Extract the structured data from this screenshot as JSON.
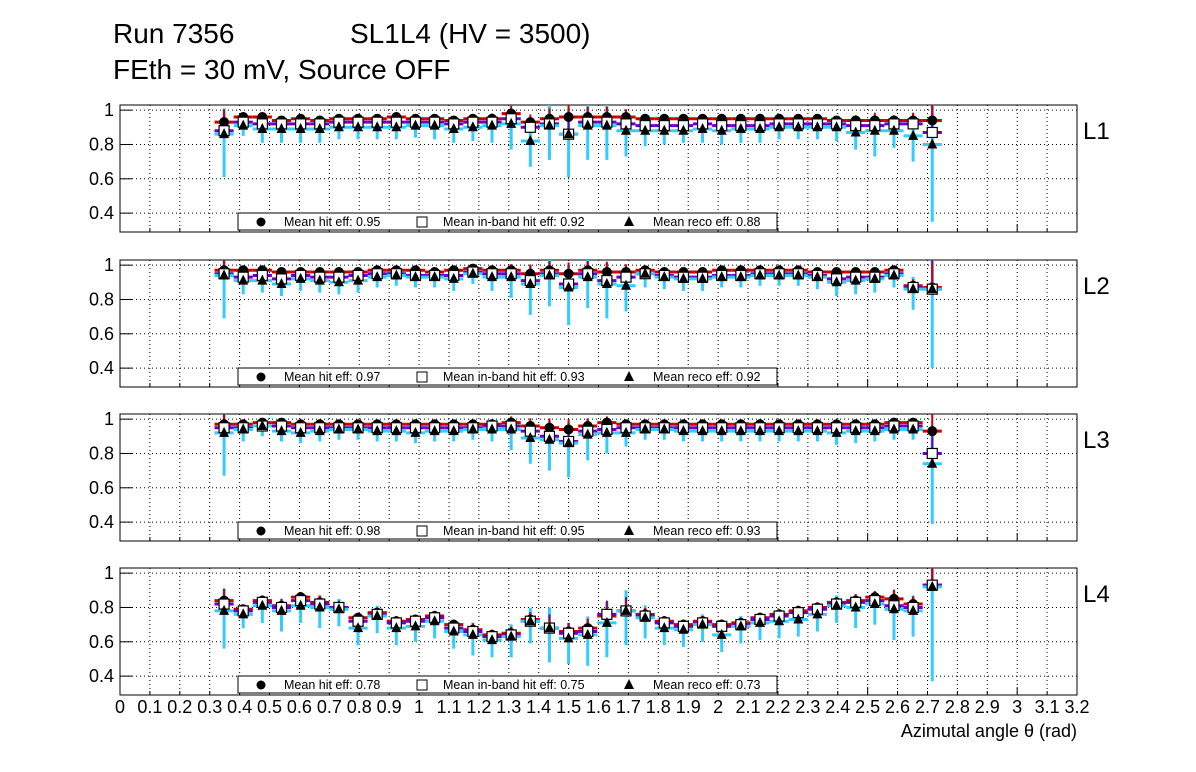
{
  "title": {
    "run": "Run 7356",
    "chamber": "SL1L4 (HV = 3500)",
    "conditions": "FEth = 30 mV, Source OFF"
  },
  "colors": {
    "hit": "#cc0000",
    "inband": "#6a00cc",
    "reco": "#33ccff",
    "marker": "#000000"
  },
  "chart_data": [
    {
      "type": "scatter",
      "panel_label": "L1",
      "x_start": 0.348,
      "bin_width": 0.064,
      "xlim": [
        0,
        3.2
      ],
      "ylim": [
        0.29,
        1.03
      ],
      "y_ticks": [
        "0.4",
        "0.6",
        "0.8",
        "1"
      ],
      "legend": [
        "Mean hit  eff: 0.95",
        "Mean in-band hit eff: 0.92",
        "Mean reco eff: 0.88"
      ],
      "hit": [
        0.93,
        0.96,
        0.96,
        0.94,
        0.95,
        0.94,
        0.95,
        0.95,
        0.95,
        0.96,
        0.95,
        0.95,
        0.94,
        0.95,
        0.95,
        0.98,
        0.93,
        0.95,
        0.96,
        0.96,
        0.96,
        0.96,
        0.95,
        0.95,
        0.95,
        0.95,
        0.95,
        0.95,
        0.95,
        0.95,
        0.95,
        0.95,
        0.94,
        0.94,
        0.94,
        0.94,
        0.94,
        0.94
      ],
      "inband": [
        0.88,
        0.93,
        0.92,
        0.92,
        0.92,
        0.92,
        0.93,
        0.93,
        0.93,
        0.93,
        0.93,
        0.93,
        0.92,
        0.93,
        0.93,
        0.95,
        0.9,
        0.92,
        0.86,
        0.93,
        0.93,
        0.92,
        0.91,
        0.91,
        0.91,
        0.92,
        0.91,
        0.91,
        0.91,
        0.92,
        0.92,
        0.92,
        0.92,
        0.91,
        0.91,
        0.92,
        0.92,
        0.87
      ],
      "reco": [
        0.86,
        0.91,
        0.89,
        0.89,
        0.89,
        0.89,
        0.9,
        0.9,
        0.9,
        0.9,
        0.91,
        0.91,
        0.89,
        0.9,
        0.91,
        0.92,
        0.82,
        0.91,
        0.86,
        0.91,
        0.91,
        0.88,
        0.88,
        0.88,
        0.88,
        0.89,
        0.88,
        0.89,
        0.89,
        0.9,
        0.9,
        0.9,
        0.9,
        0.87,
        0.88,
        0.88,
        0.85,
        0.8
      ],
      "reco_err": [
        0.25,
        0.06,
        0.08,
        0.08,
        0.08,
        0.08,
        0.07,
        0.07,
        0.07,
        0.07,
        0.07,
        0.08,
        0.08,
        0.08,
        0.1,
        0.15,
        0.15,
        0.2,
        0.25,
        0.2,
        0.2,
        0.15,
        0.09,
        0.08,
        0.07,
        0.08,
        0.08,
        0.08,
        0.08,
        0.07,
        0.07,
        0.07,
        0.08,
        0.1,
        0.15,
        0.1,
        0.15,
        0.45
      ]
    },
    {
      "type": "scatter",
      "panel_label": "L2",
      "x_start": 0.348,
      "bin_width": 0.064,
      "xlim": [
        0,
        3.2
      ],
      "ylim": [
        0.29,
        1.03
      ],
      "y_ticks": [
        "0.4",
        "0.6",
        "0.8",
        "1"
      ],
      "legend": [
        "Mean hit  eff: 0.97",
        "Mean in-band hit eff: 0.93",
        "Mean reco eff: 0.92"
      ],
      "hit": [
        0.97,
        0.97,
        0.97,
        0.96,
        0.96,
        0.96,
        0.96,
        0.96,
        0.97,
        0.97,
        0.97,
        0.96,
        0.97,
        0.98,
        0.97,
        0.97,
        0.95,
        0.97,
        0.95,
        0.97,
        0.96,
        0.96,
        0.97,
        0.96,
        0.96,
        0.96,
        0.97,
        0.97,
        0.97,
        0.97,
        0.97,
        0.96,
        0.96,
        0.96,
        0.96,
        0.97,
        0.88,
        0.87
      ],
      "inband": [
        0.95,
        0.93,
        0.94,
        0.92,
        0.94,
        0.93,
        0.93,
        0.94,
        0.95,
        0.95,
        0.94,
        0.94,
        0.94,
        0.96,
        0.95,
        0.95,
        0.91,
        0.95,
        0.89,
        0.95,
        0.91,
        0.93,
        0.95,
        0.94,
        0.93,
        0.93,
        0.94,
        0.94,
        0.95,
        0.95,
        0.95,
        0.94,
        0.92,
        0.93,
        0.93,
        0.95,
        0.87,
        0.86
      ],
      "reco": [
        0.94,
        0.91,
        0.91,
        0.89,
        0.92,
        0.91,
        0.9,
        0.91,
        0.93,
        0.94,
        0.93,
        0.93,
        0.92,
        0.95,
        0.93,
        0.93,
        0.89,
        0.94,
        0.87,
        0.93,
        0.89,
        0.88,
        0.95,
        0.93,
        0.92,
        0.92,
        0.93,
        0.93,
        0.94,
        0.94,
        0.94,
        0.93,
        0.9,
        0.91,
        0.92,
        0.94,
        0.86,
        0.86
      ],
      "reco_err": [
        0.25,
        0.08,
        0.07,
        0.07,
        0.07,
        0.07,
        0.07,
        0.07,
        0.06,
        0.06,
        0.06,
        0.06,
        0.07,
        0.06,
        0.08,
        0.12,
        0.18,
        0.18,
        0.22,
        0.18,
        0.2,
        0.15,
        0.08,
        0.07,
        0.07,
        0.07,
        0.06,
        0.06,
        0.06,
        0.06,
        0.06,
        0.07,
        0.08,
        0.08,
        0.08,
        0.07,
        0.12,
        0.46
      ]
    },
    {
      "type": "scatter",
      "panel_label": "L3",
      "x_start": 0.348,
      "bin_width": 0.064,
      "xlim": [
        0,
        3.2
      ],
      "ylim": [
        0.29,
        1.03
      ],
      "y_ticks": [
        "0.4",
        "0.6",
        "0.8",
        "1"
      ],
      "legend": [
        "Mean hit  eff: 0.98",
        "Mean in-band hit eff: 0.95",
        "Mean reco eff: 0.93"
      ],
      "hit": [
        0.97,
        0.97,
        0.98,
        0.98,
        0.97,
        0.97,
        0.97,
        0.97,
        0.97,
        0.97,
        0.97,
        0.97,
        0.97,
        0.97,
        0.97,
        0.98,
        0.96,
        0.95,
        0.94,
        0.96,
        0.98,
        0.97,
        0.97,
        0.97,
        0.97,
        0.97,
        0.97,
        0.97,
        0.97,
        0.97,
        0.97,
        0.97,
        0.97,
        0.97,
        0.97,
        0.98,
        0.98,
        0.93
      ],
      "inband": [
        0.95,
        0.95,
        0.96,
        0.96,
        0.95,
        0.95,
        0.95,
        0.95,
        0.95,
        0.95,
        0.95,
        0.95,
        0.95,
        0.95,
        0.96,
        0.96,
        0.93,
        0.9,
        0.87,
        0.93,
        0.94,
        0.95,
        0.95,
        0.95,
        0.95,
        0.95,
        0.95,
        0.95,
        0.95,
        0.95,
        0.95,
        0.95,
        0.95,
        0.95,
        0.95,
        0.96,
        0.96,
        0.8
      ],
      "reco": [
        0.92,
        0.94,
        0.96,
        0.93,
        0.92,
        0.93,
        0.94,
        0.94,
        0.93,
        0.93,
        0.92,
        0.93,
        0.93,
        0.94,
        0.94,
        0.94,
        0.89,
        0.88,
        0.86,
        0.91,
        0.92,
        0.92,
        0.94,
        0.94,
        0.93,
        0.93,
        0.93,
        0.93,
        0.93,
        0.93,
        0.93,
        0.93,
        0.92,
        0.93,
        0.93,
        0.94,
        0.94,
        0.74
      ],
      "reco_err": [
        0.25,
        0.07,
        0.06,
        0.06,
        0.06,
        0.06,
        0.06,
        0.06,
        0.06,
        0.06,
        0.06,
        0.06,
        0.06,
        0.06,
        0.07,
        0.12,
        0.15,
        0.18,
        0.2,
        0.15,
        0.12,
        0.08,
        0.06,
        0.06,
        0.06,
        0.06,
        0.06,
        0.06,
        0.06,
        0.06,
        0.06,
        0.06,
        0.07,
        0.07,
        0.06,
        0.06,
        0.06,
        0.35
      ]
    },
    {
      "type": "scatter",
      "panel_label": "L4",
      "x_start": 0.348,
      "bin_width": 0.064,
      "xlim": [
        0,
        3.2
      ],
      "ylim": [
        0.29,
        1.03
      ],
      "y_ticks": [
        "0.4",
        "0.6",
        "0.8",
        "1"
      ],
      "legend": [
        "Mean hit  eff: 0.78",
        "Mean in-band hit eff: 0.75",
        "Mean reco eff: 0.73"
      ],
      "hit": [
        0.84,
        0.79,
        0.84,
        0.81,
        0.86,
        0.83,
        0.8,
        0.74,
        0.77,
        0.72,
        0.73,
        0.75,
        0.7,
        0.67,
        0.64,
        0.65,
        0.73,
        0.68,
        0.66,
        0.68,
        0.75,
        0.78,
        0.76,
        0.72,
        0.7,
        0.72,
        0.7,
        0.71,
        0.74,
        0.76,
        0.78,
        0.8,
        0.83,
        0.84,
        0.86,
        0.85,
        0.82,
        0.93
      ],
      "inband": [
        0.82,
        0.78,
        0.83,
        0.8,
        0.84,
        0.82,
        0.8,
        0.72,
        0.76,
        0.71,
        0.72,
        0.74,
        0.68,
        0.66,
        0.63,
        0.64,
        0.72,
        0.68,
        0.65,
        0.66,
        0.76,
        0.78,
        0.75,
        0.71,
        0.69,
        0.71,
        0.69,
        0.7,
        0.73,
        0.75,
        0.77,
        0.79,
        0.82,
        0.83,
        0.84,
        0.81,
        0.8,
        0.93
      ],
      "reco": [
        0.78,
        0.76,
        0.81,
        0.78,
        0.81,
        0.8,
        0.79,
        0.68,
        0.75,
        0.68,
        0.69,
        0.72,
        0.66,
        0.64,
        0.61,
        0.63,
        0.72,
        0.68,
        0.62,
        0.64,
        0.71,
        0.78,
        0.74,
        0.68,
        0.67,
        0.7,
        0.64,
        0.69,
        0.71,
        0.72,
        0.73,
        0.76,
        0.81,
        0.8,
        0.82,
        0.79,
        0.78,
        0.92
      ],
      "reco_err": [
        0.22,
        0.08,
        0.1,
        0.12,
        0.1,
        0.12,
        0.1,
        0.1,
        0.1,
        0.1,
        0.09,
        0.1,
        0.1,
        0.12,
        0.1,
        0.12,
        0.13,
        0.2,
        0.15,
        0.18,
        0.2,
        0.2,
        0.12,
        0.1,
        0.1,
        0.1,
        0.1,
        0.1,
        0.1,
        0.1,
        0.1,
        0.1,
        0.1,
        0.12,
        0.12,
        0.18,
        0.15,
        0.55
      ]
    }
  ],
  "x_axis": {
    "title": "Azimutal angle θ (rad)",
    "tick_labels": [
      "0",
      "0.1",
      "0.2",
      "0.3",
      "0.4",
      "0.5",
      "0.6",
      "0.7",
      "0.8",
      "0.9",
      "1",
      "1.1",
      "1.2",
      "1.3",
      "1.4",
      "1.5",
      "1.6",
      "1.7",
      "1.8",
      "1.9",
      "2",
      "2.1",
      "2.2",
      "2.3",
      "2.4",
      "2.5",
      "2.6",
      "2.7",
      "2.8",
      "2.9",
      "3",
      "3.1",
      "3.2"
    ]
  }
}
